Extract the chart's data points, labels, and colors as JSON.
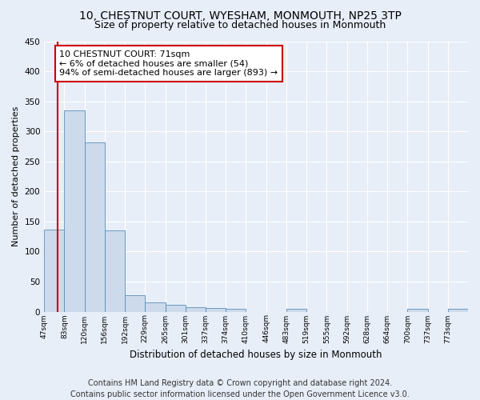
{
  "title": "10, CHESTNUT COURT, WYESHAM, MONMOUTH, NP25 3TP",
  "subtitle": "Size of property relative to detached houses in Monmouth",
  "xlabel": "Distribution of detached houses by size in Monmouth",
  "ylabel": "Number of detached properties",
  "bar_values": [
    136,
    335,
    281,
    135,
    27,
    15,
    11,
    7,
    6,
    5,
    0,
    0,
    5,
    0,
    0,
    0,
    0,
    0,
    5,
    0,
    5
  ],
  "bin_labels": [
    "47sqm",
    "83sqm",
    "120sqm",
    "156sqm",
    "192sqm",
    "229sqm",
    "265sqm",
    "301sqm",
    "337sqm",
    "374sqm",
    "410sqm",
    "446sqm",
    "483sqm",
    "519sqm",
    "555sqm",
    "592sqm",
    "628sqm",
    "664sqm",
    "700sqm",
    "737sqm",
    "773sqm"
  ],
  "bar_color": "#ccdaeb",
  "bar_edge_color": "#5b8db8",
  "annotation_text": "10 CHESTNUT COURT: 71sqm\n← 6% of detached houses are smaller (54)\n94% of semi-detached houses are larger (893) →",
  "annotation_box_color": "#ffffff",
  "annotation_box_edge_color": "#cc0000",
  "property_line_color": "#cc0000",
  "property_line_x": 0.66,
  "ylim": [
    0,
    450
  ],
  "yticks": [
    0,
    50,
    100,
    150,
    200,
    250,
    300,
    350,
    400,
    450
  ],
  "bg_color": "#e8eef8",
  "grid_color": "#ffffff",
  "footer_line1": "Contains HM Land Registry data © Crown copyright and database right 2024.",
  "footer_line2": "Contains public sector information licensed under the Open Government Licence v3.0.",
  "title_fontsize": 10,
  "subtitle_fontsize": 9,
  "annotation_fontsize": 8,
  "footer_fontsize": 7,
  "ylabel_fontsize": 8,
  "xlabel_fontsize": 8.5
}
